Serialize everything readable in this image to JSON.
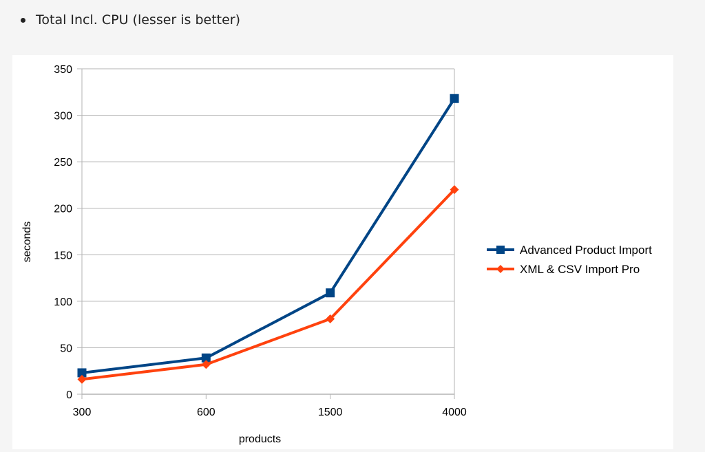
{
  "bullet": {
    "text": "Total Incl. CPU (lesser is better)"
  },
  "colors": {
    "series_1": "#004586",
    "series_2": "#ff420e",
    "grid": "#b3b3b3",
    "axis": "#b3b3b3",
    "text": "#000000"
  },
  "chart_data": {
    "type": "line",
    "title": "",
    "xlabel": "products",
    "ylabel": "seconds",
    "categories": [
      "300",
      "600",
      "1500",
      "4000"
    ],
    "ylim": [
      0,
      350
    ],
    "yticks": [
      0,
      50,
      100,
      150,
      200,
      250,
      300,
      350
    ],
    "grid": true,
    "legend_position": "right",
    "series": [
      {
        "name": "Advanced Product Import",
        "values": [
          23,
          39,
          109,
          318
        ],
        "marker": "square",
        "color": "#004586"
      },
      {
        "name": "XML & CSV Import Pro",
        "values": [
          16,
          32,
          81,
          220
        ],
        "marker": "diamond",
        "color": "#ff420e"
      }
    ]
  }
}
